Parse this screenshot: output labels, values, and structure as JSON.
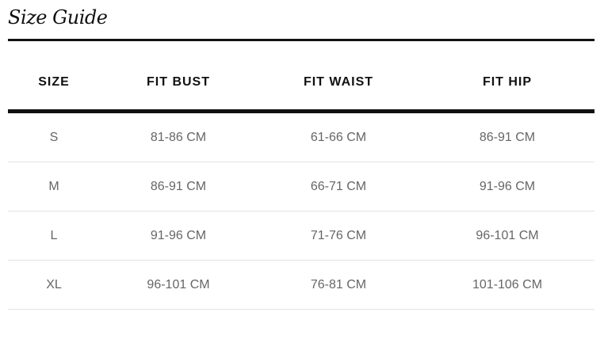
{
  "title": "Size Guide",
  "headers": [
    "SIZE",
    "FIT BUST",
    "FIT WAIST",
    "FIT HIP"
  ],
  "rows": [
    [
      "S",
      "81-86 CM",
      "61-66 CM",
      "86-91 CM"
    ],
    [
      "M",
      "86-91 CM",
      "66-71 CM",
      "91-96 CM"
    ],
    [
      "L",
      "91-96 CM",
      "71-76 CM",
      "96-101 CM"
    ],
    [
      "XL",
      "96-101 CM",
      "76-81 CM",
      "101-106 CM"
    ]
  ]
}
